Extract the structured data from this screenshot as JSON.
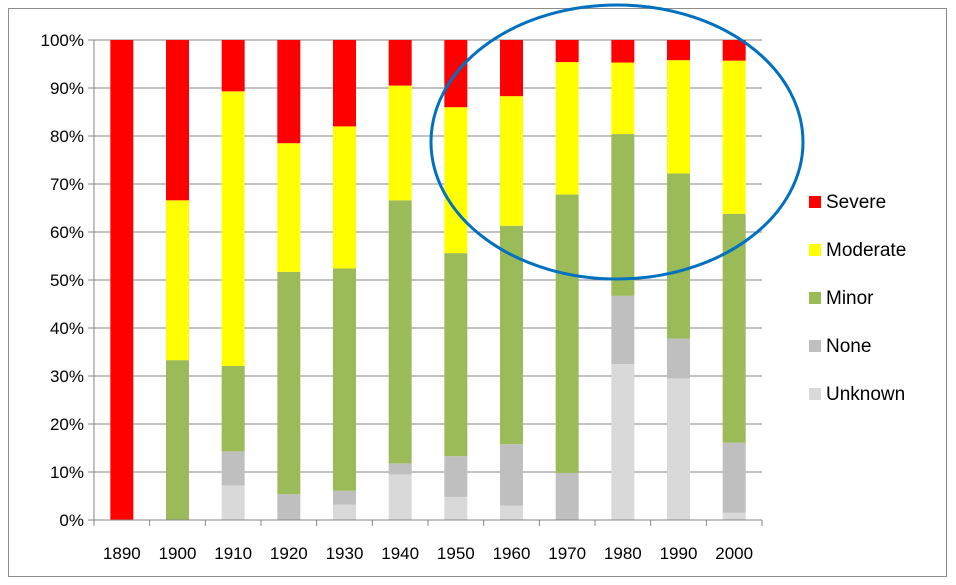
{
  "chart_data": {
    "type": "bar",
    "stacked": true,
    "normalized": true,
    "title": "",
    "xlabel": "",
    "ylabel": "",
    "categories": [
      "1890",
      "1900",
      "1910",
      "1920",
      "1930",
      "1940",
      "1950",
      "1960",
      "1970",
      "1980",
      "1990",
      "2000"
    ],
    "ylim": [
      0,
      100
    ],
    "yticks": [
      "0%",
      "10%",
      "20%",
      "30%",
      "40%",
      "50%",
      "60%",
      "70%",
      "80%",
      "90%",
      "100%"
    ],
    "grid": true,
    "legend_position": "right",
    "series": [
      {
        "name": "Unknown",
        "color": "#d9d9d9",
        "values": [
          0,
          0,
          7.2,
          0,
          3.2,
          9.5,
          4.8,
          3.0,
          0,
          32.5,
          29.5,
          1.5
        ]
      },
      {
        "name": "None",
        "color": "#bfbfbf",
        "values": [
          0,
          0,
          7.1,
          5.4,
          2.9,
          2.3,
          8.5,
          12.8,
          9.8,
          14.2,
          8.3,
          14.6
        ]
      },
      {
        "name": "Minor",
        "color": "#9bbb59",
        "values": [
          0,
          33.3,
          17.8,
          46.3,
          46.3,
          54.8,
          42.3,
          45.5,
          58.0,
          33.7,
          34.4,
          47.7
        ]
      },
      {
        "name": "Moderate",
        "color": "#ffff00",
        "values": [
          0,
          33.3,
          57.2,
          26.8,
          29.6,
          23.9,
          30.4,
          27.0,
          27.6,
          14.9,
          23.6,
          31.9
        ]
      },
      {
        "name": "Severe",
        "color": "#ff0000",
        "values": [
          100,
          33.4,
          10.7,
          21.5,
          18.0,
          9.5,
          14.0,
          11.7,
          4.6,
          4.7,
          4.2,
          4.3
        ]
      }
    ],
    "legend_order": [
      "Severe",
      "Moderate",
      "Minor",
      "None",
      "Unknown"
    ],
    "annotation": {
      "shape": "ellipse",
      "color": "#0070c0",
      "covers_categories": [
        "1950",
        "1960",
        "1970",
        "1980",
        "1990",
        "2000"
      ]
    }
  }
}
